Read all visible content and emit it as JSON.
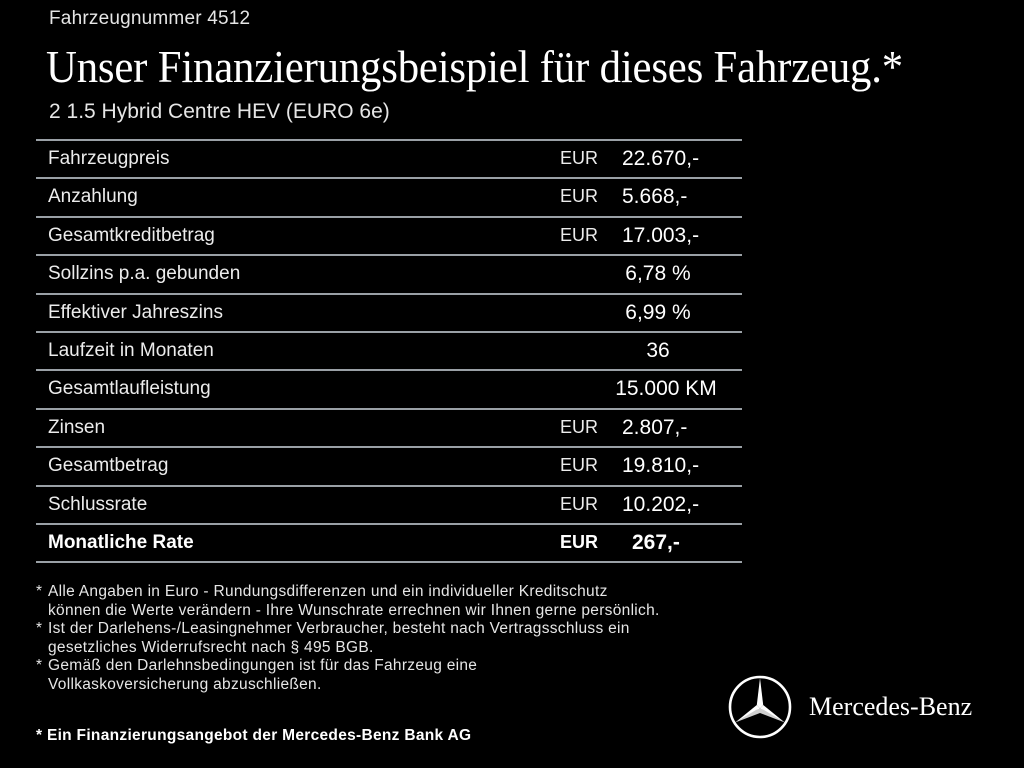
{
  "header": {
    "vehicle_number": "Fahrzeugnummer 4512",
    "headline": "Unser Finanzierungsbeispiel für dieses Fahrzeug.*",
    "model": "2 1.5 Hybrid Centre HEV (EURO 6e)"
  },
  "table": {
    "rows": [
      {
        "label": "Fahrzeugpreis",
        "currency": "EUR",
        "value": "22.670,-"
      },
      {
        "label": "Anzahlung",
        "currency": "EUR",
        "value": "5.668,-"
      },
      {
        "label": "Gesamtkreditbetrag",
        "currency": "EUR",
        "value": "17.003,-"
      },
      {
        "label": "Sollzins p.a. gebunden",
        "currency": "",
        "value": "6,78 %"
      },
      {
        "label": "Effektiver Jahreszins",
        "currency": "",
        "value": "6,99 %"
      },
      {
        "label": "Laufzeit in Monaten",
        "currency": "",
        "value": "36"
      },
      {
        "label": "Gesamtlaufleistung",
        "currency": "",
        "value": "15.000 KM"
      },
      {
        "label": "Zinsen",
        "currency": "EUR",
        "value": "2.807,-"
      },
      {
        "label": "Gesamtbetrag",
        "currency": "EUR",
        "value": "19.810,-"
      },
      {
        "label": "Schlussrate",
        "currency": "EUR",
        "value": "10.202,-"
      },
      {
        "label": "Monatliche Rate",
        "currency": "EUR",
        "value": "267,-"
      }
    ]
  },
  "footnotes": [
    {
      "marker": "*",
      "text": "Alle Angaben in Euro - Rundungsdifferenzen und ein individueller Kreditschutz\nkönnen die Werte verändern - Ihre Wunschrate errechnen wir Ihnen gerne persönlich."
    },
    {
      "marker": "*",
      "text": "Ist der Darlehens-/Leasingnehmer Verbraucher, besteht nach Vertragsschluss ein\ngesetzliches Widerrufsrecht nach § 495 BGB."
    },
    {
      "marker": "*",
      "text": "Gemäß den Darlehnsbedingungen ist für das Fahrzeug eine\nVollkaskoversicherung abzuschließen."
    }
  ],
  "bank_note": "* Ein Finanzierungsangebot der Mercedes-Benz Bank AG",
  "brand": {
    "name": "Mercedes-Benz",
    "logo_icon": "mercedes-star-icon",
    "color": "#ffffff"
  },
  "colors": {
    "background": "#000000",
    "text": "#ffffff",
    "rule": "#9aa0a6"
  }
}
